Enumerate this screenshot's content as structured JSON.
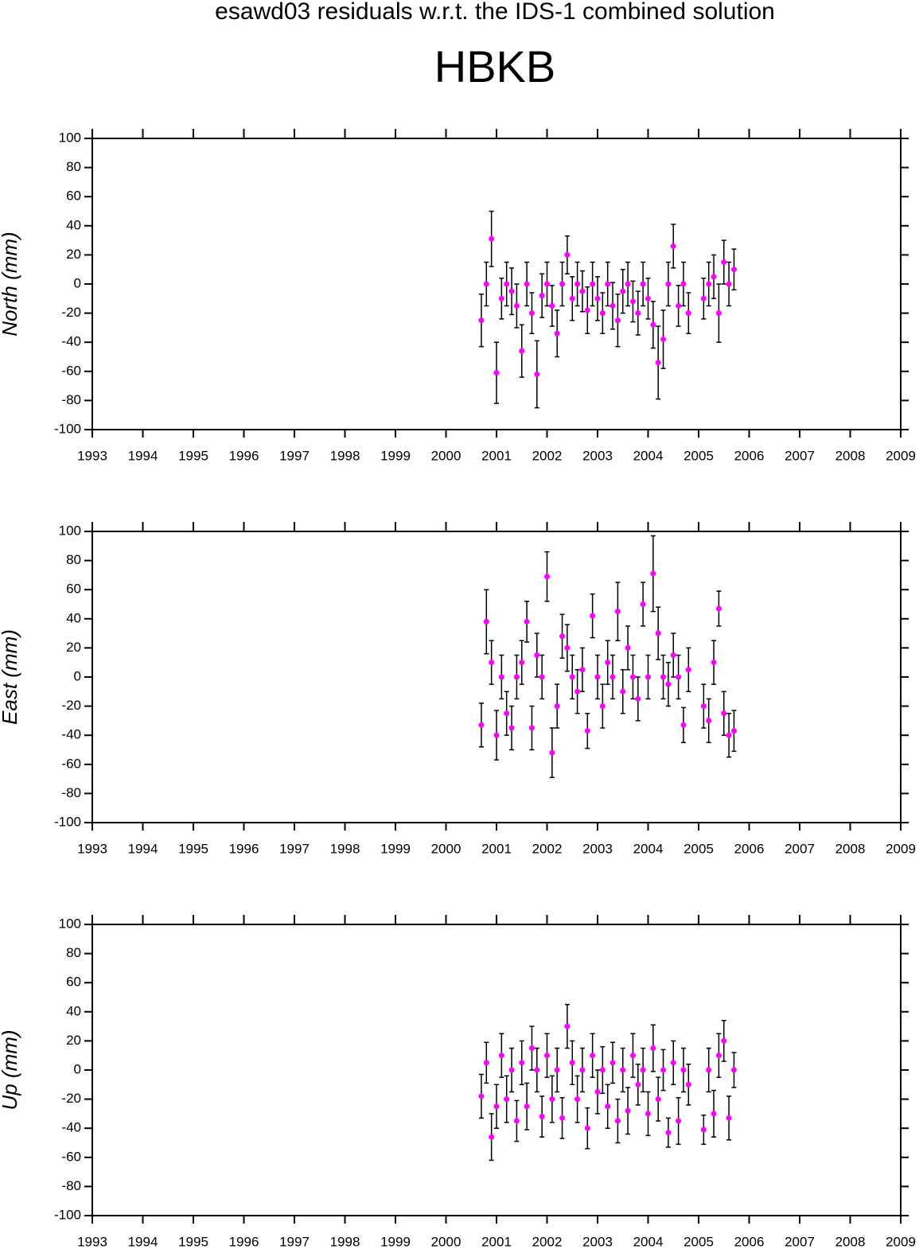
{
  "title": "esawd03 residuals w.r.t. the IDS-1 combined solution",
  "subtitle": "HBKB",
  "chart_data": [
    {
      "type": "scatter",
      "ylabel": "North (mm)",
      "color": "#ff00ff",
      "error_color": "#000000",
      "xlim": [
        1993,
        2009
      ],
      "xticks": [
        1993,
        1994,
        1995,
        1996,
        1997,
        1998,
        1999,
        2000,
        2001,
        2002,
        2003,
        2004,
        2005,
        2006,
        2007,
        2008,
        2009
      ],
      "ylim": [
        -100,
        100
      ],
      "yticks": [
        -100,
        -80,
        -60,
        -40,
        -20,
        0,
        20,
        40,
        60,
        80,
        100
      ],
      "x": [
        2000.7,
        2000.8,
        2000.9,
        2001.0,
        2001.1,
        2001.2,
        2001.3,
        2001.4,
        2001.5,
        2001.6,
        2001.7,
        2001.8,
        2001.9,
        2002.0,
        2002.1,
        2002.2,
        2002.3,
        2002.4,
        2002.5,
        2002.6,
        2002.7,
        2002.8,
        2002.9,
        2003.0,
        2003.1,
        2003.2,
        2003.3,
        2003.4,
        2003.5,
        2003.6,
        2003.7,
        2003.8,
        2003.9,
        2004.0,
        2004.1,
        2004.2,
        2004.3,
        2004.4,
        2004.5,
        2004.6,
        2004.7,
        2004.8,
        2005.1,
        2005.2,
        2005.3,
        2005.4,
        2005.5,
        2005.6,
        2005.7
      ],
      "values": [
        -25,
        0,
        31,
        -61,
        -10,
        0,
        -5,
        -15,
        -46,
        0,
        -20,
        -62,
        -8,
        0,
        -15,
        -34,
        0,
        20,
        -10,
        0,
        -5,
        -18,
        0,
        -10,
        -20,
        0,
        -15,
        -25,
        -5,
        0,
        -12,
        -20,
        0,
        -10,
        -28,
        -54,
        -38,
        0,
        26,
        -15,
        0,
        -20,
        -10,
        0,
        5,
        -20,
        15,
        0,
        10
      ],
      "errors": [
        18,
        15,
        19,
        21,
        14,
        15,
        16,
        15,
        18,
        15,
        14,
        23,
        15,
        15,
        14,
        16,
        15,
        13,
        15,
        15,
        14,
        16,
        15,
        15,
        14,
        15,
        16,
        18,
        15,
        15,
        14,
        15,
        15,
        14,
        16,
        25,
        20,
        15,
        15,
        14,
        15,
        14,
        14,
        15,
        15,
        20,
        15,
        15,
        14
      ]
    },
    {
      "type": "scatter",
      "ylabel": "East (mm)",
      "color": "#ff00ff",
      "error_color": "#000000",
      "xlim": [
        1993,
        2009
      ],
      "xticks": [
        1993,
        1994,
        1995,
        1996,
        1997,
        1998,
        1999,
        2000,
        2001,
        2002,
        2003,
        2004,
        2005,
        2006,
        2007,
        2008,
        2009
      ],
      "ylim": [
        -100,
        100
      ],
      "yticks": [
        -100,
        -80,
        -60,
        -40,
        -20,
        0,
        20,
        40,
        60,
        80,
        100
      ],
      "x": [
        2000.7,
        2000.8,
        2000.9,
        2001.0,
        2001.1,
        2001.2,
        2001.3,
        2001.4,
        2001.5,
        2001.6,
        2001.7,
        2001.8,
        2001.9,
        2002.0,
        2002.1,
        2002.2,
        2002.3,
        2002.4,
        2002.5,
        2002.6,
        2002.7,
        2002.8,
        2002.9,
        2003.0,
        2003.1,
        2003.2,
        2003.3,
        2003.4,
        2003.5,
        2003.6,
        2003.7,
        2003.8,
        2003.9,
        2004.0,
        2004.1,
        2004.2,
        2004.3,
        2004.4,
        2004.5,
        2004.6,
        2004.7,
        2004.8,
        2005.1,
        2005.2,
        2005.3,
        2005.4,
        2005.5,
        2005.6,
        2005.7
      ],
      "values": [
        -33,
        38,
        10,
        -40,
        0,
        -25,
        -35,
        0,
        10,
        38,
        -35,
        15,
        0,
        69,
        -52,
        -20,
        28,
        20,
        0,
        -10,
        5,
        -37,
        42,
        0,
        -20,
        10,
        0,
        45,
        -10,
        20,
        0,
        -15,
        50,
        0,
        71,
        30,
        0,
        -5,
        15,
        0,
        -33,
        5,
        -20,
        -30,
        10,
        47,
        -25,
        -40,
        -37
      ],
      "errors": [
        15,
        22,
        15,
        17,
        15,
        15,
        15,
        15,
        15,
        14,
        15,
        15,
        15,
        17,
        17,
        15,
        15,
        16,
        15,
        15,
        15,
        12,
        15,
        15,
        15,
        15,
        15,
        20,
        15,
        15,
        15,
        15,
        15,
        15,
        26,
        18,
        15,
        15,
        15,
        15,
        12,
        15,
        15,
        15,
        15,
        12,
        15,
        15,
        14
      ]
    },
    {
      "type": "scatter",
      "ylabel": "Up (mm)",
      "color": "#ff00ff",
      "error_color": "#000000",
      "xlim": [
        1993,
        2009
      ],
      "xticks": [
        1993,
        1994,
        1995,
        1996,
        1997,
        1998,
        1999,
        2000,
        2001,
        2002,
        2003,
        2004,
        2005,
        2006,
        2007,
        2008,
        2009
      ],
      "ylim": [
        -100,
        100
      ],
      "yticks": [
        -100,
        -80,
        -60,
        -40,
        -20,
        0,
        20,
        40,
        60,
        80,
        100
      ],
      "x": [
        2000.7,
        2000.8,
        2000.9,
        2001.0,
        2001.1,
        2001.2,
        2001.3,
        2001.4,
        2001.5,
        2001.6,
        2001.7,
        2001.8,
        2001.9,
        2002.0,
        2002.1,
        2002.2,
        2002.3,
        2002.4,
        2002.5,
        2002.6,
        2002.7,
        2002.8,
        2002.9,
        2003.0,
        2003.1,
        2003.2,
        2003.3,
        2003.4,
        2003.5,
        2003.6,
        2003.7,
        2003.8,
        2003.9,
        2004.0,
        2004.1,
        2004.2,
        2004.3,
        2004.4,
        2004.5,
        2004.6,
        2004.7,
        2004.8,
        2005.1,
        2005.2,
        2005.3,
        2005.4,
        2005.5,
        2005.6,
        2005.7
      ],
      "values": [
        -18,
        5,
        -46,
        -25,
        10,
        -20,
        0,
        -35,
        5,
        -25,
        15,
        0,
        -32,
        10,
        -20,
        0,
        -33,
        30,
        5,
        -20,
        0,
        -40,
        10,
        -15,
        0,
        -25,
        5,
        -35,
        0,
        -28,
        10,
        -10,
        0,
        -30,
        15,
        -20,
        0,
        -43,
        5,
        -35,
        0,
        -10,
        -41,
        0,
        -30,
        10,
        20,
        -33,
        0
      ],
      "errors": [
        15,
        14,
        16,
        15,
        15,
        16,
        15,
        14,
        15,
        16,
        15,
        15,
        14,
        15,
        16,
        15,
        14,
        15,
        15,
        16,
        15,
        14,
        15,
        15,
        16,
        15,
        14,
        15,
        15,
        16,
        15,
        14,
        15,
        15,
        16,
        15,
        14,
        10,
        15,
        16,
        15,
        14,
        10,
        15,
        16,
        15,
        14,
        15,
        12
      ]
    }
  ]
}
